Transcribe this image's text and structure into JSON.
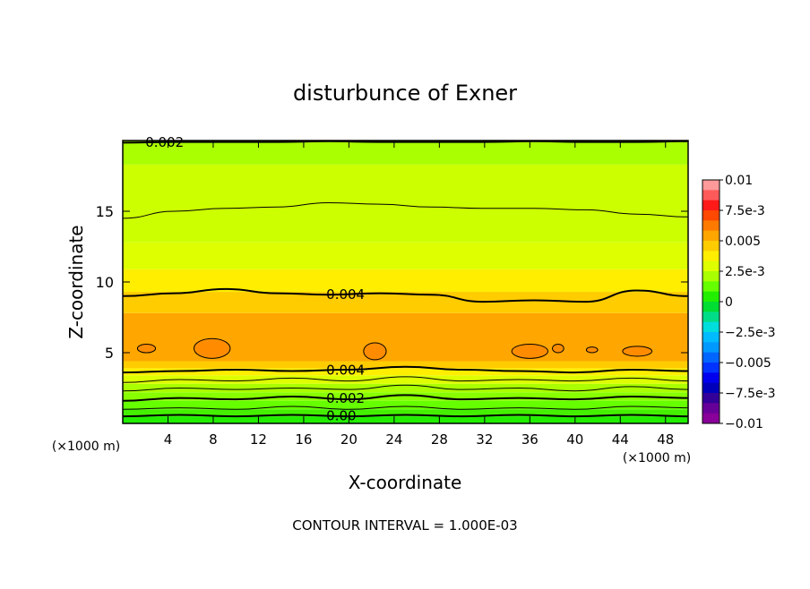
{
  "chart_data": {
    "type": "heatmap",
    "title": "disturbunce of Exner",
    "xlabel": "X-coordinate",
    "ylabel": "Z-coordinate",
    "x_unit": "(×1000 m)",
    "x_unit_right": "(×1000 m)",
    "xlim": [
      0,
      50
    ],
    "ylim": [
      0,
      20
    ],
    "x_ticks": [
      4,
      8,
      12,
      16,
      20,
      24,
      28,
      32,
      36,
      40,
      44,
      48
    ],
    "y_ticks": [
      5,
      10,
      15
    ],
    "footer": "CONTOUR INTERVAL = 1.000E-03",
    "colorbar": {
      "ticks": [
        "0.01",
        "7.5e-3",
        "0.005",
        "2.5e-3",
        "0",
        "−2.5e-3",
        "−0.005",
        "−7.5e-3",
        "−0.01"
      ],
      "colors": [
        "#ff9a9a",
        "#ff5a5a",
        "#ff1a1a",
        "#ff4800",
        "#ff7a00",
        "#ffa600",
        "#ffcc00",
        "#ffee00",
        "#ddff00",
        "#aaff00",
        "#66ff00",
        "#22ee00",
        "#00dd33",
        "#00dd88",
        "#00dddd",
        "#00bbff",
        "#0099ff",
        "#0066ff",
        "#0033ff",
        "#0000ee",
        "#0000bb",
        "#330099",
        "#660099",
        "#880099"
      ]
    },
    "bands": [
      {
        "z": [
          0,
          0.5
        ],
        "color": "#22ee00"
      },
      {
        "z": [
          0.5,
          1.0
        ],
        "color": "#44f000"
      },
      {
        "z": [
          1.0,
          1.6
        ],
        "color": "#66ff00"
      },
      {
        "z": [
          1.6,
          2.2
        ],
        "color": "#88ff00"
      },
      {
        "z": [
          2.2,
          2.8
        ],
        "color": "#aaff00"
      },
      {
        "z": [
          2.8,
          3.4
        ],
        "color": "#ddff00"
      },
      {
        "z": [
          3.4,
          3.9
        ],
        "color": "#ffee00"
      },
      {
        "z": [
          3.9,
          4.4
        ],
        "color": "#ffcc00"
      },
      {
        "z": [
          4.4,
          7.8
        ],
        "color": "#ffa600"
      },
      {
        "z": [
          7.8,
          9.3
        ],
        "color": "#ffcc00"
      },
      {
        "z": [
          9.3,
          10.9
        ],
        "color": "#ffee00"
      },
      {
        "z": [
          10.9,
          12.8
        ],
        "color": "#ddff00"
      },
      {
        "z": [
          12.8,
          18.3
        ],
        "color": "#ccff00"
      },
      {
        "z": [
          18.3,
          20
        ],
        "color": "#aaff00"
      }
    ],
    "contours": [
      {
        "label": "0.00",
        "z": [
          0.5,
          0.6,
          0.5,
          0.6,
          0.5,
          0.6,
          0.5,
          0.6,
          0.5,
          0.6,
          0.5
        ],
        "bold": true,
        "label_x": 18
      },
      {
        "label": "",
        "z": [
          1.0,
          1.1,
          1.0,
          1.2,
          1.0,
          1.2,
          1.0,
          1.1,
          1.0,
          1.2,
          1.1
        ],
        "bold": false,
        "label_x": null
      },
      {
        "label": "0.002",
        "z": [
          1.6,
          1.8,
          1.7,
          1.9,
          1.7,
          2.0,
          1.7,
          1.8,
          1.7,
          1.9,
          1.8
        ],
        "bold": true,
        "label_x": 18
      },
      {
        "label": "",
        "z": [
          2.3,
          2.5,
          2.4,
          2.5,
          2.4,
          2.7,
          2.4,
          2.5,
          2.3,
          2.6,
          2.4
        ],
        "bold": false,
        "label_x": null
      },
      {
        "label": "",
        "z": [
          2.9,
          3.1,
          3.0,
          3.2,
          3.0,
          3.3,
          3.0,
          3.1,
          3.0,
          3.2,
          3.0
        ],
        "bold": false,
        "label_x": null
      },
      {
        "label": "0.004",
        "z": [
          3.6,
          3.7,
          3.8,
          3.7,
          3.8,
          4.0,
          3.8,
          3.7,
          3.6,
          3.8,
          3.7
        ],
        "bold": true,
        "label_x": 18
      },
      {
        "label": "0.004",
        "z": [
          9.0,
          9.2,
          9.5,
          9.2,
          9.1,
          9.2,
          9.1,
          8.6,
          8.7,
          8.6,
          9.4,
          9.0
        ],
        "bold": true,
        "label_x": 18
      },
      {
        "label": "",
        "z": [
          14.5,
          15.0,
          15.2,
          15.3,
          15.6,
          15.5,
          15.3,
          15.2,
          15.2,
          15.1,
          14.8,
          14.6
        ],
        "bold": false,
        "label_x": null
      },
      {
        "label": "0.002",
        "z": [
          19.85,
          19.9,
          19.9,
          19.9,
          19.95,
          19.9,
          19.9,
          19.9,
          19.95,
          19.9,
          19.9,
          19.95
        ],
        "bold": true,
        "label_x": 2
      }
    ],
    "cells": [
      {
        "x": 2.1,
        "z": 5.3,
        "rx": 0.8,
        "rz": 0.3
      },
      {
        "x": 7.9,
        "z": 5.3,
        "rx": 1.6,
        "rz": 0.7
      },
      {
        "x": 22.3,
        "z": 5.1,
        "rx": 1.0,
        "rz": 0.6
      },
      {
        "x": 36.0,
        "z": 5.1,
        "rx": 1.6,
        "rz": 0.5
      },
      {
        "x": 38.5,
        "z": 5.3,
        "rx": 0.5,
        "rz": 0.3
      },
      {
        "x": 41.5,
        "z": 5.2,
        "rx": 0.5,
        "rz": 0.2
      },
      {
        "x": 45.5,
        "z": 5.1,
        "rx": 1.3,
        "rz": 0.35
      }
    ]
  }
}
